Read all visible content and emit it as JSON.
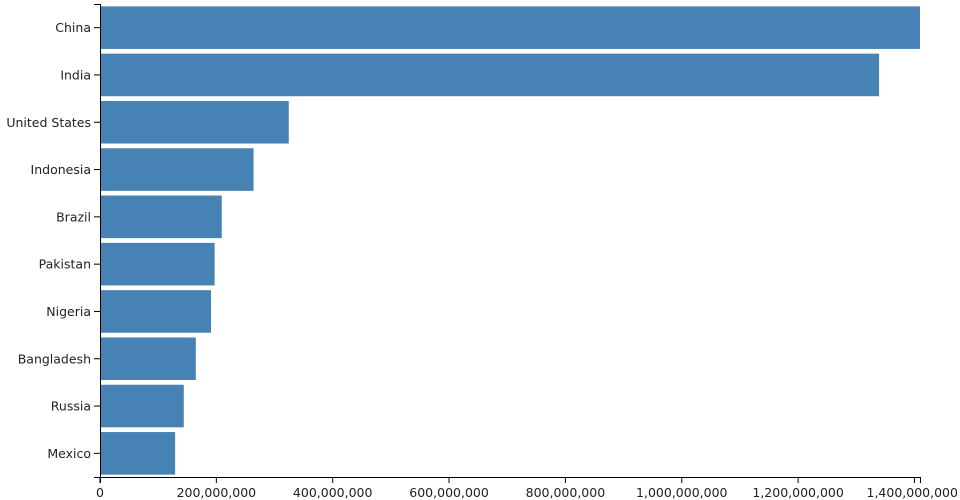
{
  "chart_data": {
    "type": "bar",
    "orientation": "horizontal",
    "title": "",
    "xlabel": "",
    "ylabel": "",
    "categories": [
      "China",
      "India",
      "United States",
      "Indonesia",
      "Brazil",
      "Pakistan",
      "Nigeria",
      "Bangladesh",
      "Russia",
      "Mexico"
    ],
    "values": [
      1409517397,
      1339180127,
      324459463,
      263991379,
      209288278,
      197015955,
      190886311,
      164669751,
      143989754,
      129163276
    ],
    "xlim": [
      0,
      1409517397
    ],
    "x_ticks": [
      0,
      200000000,
      400000000,
      600000000,
      800000000,
      1000000000,
      1200000000,
      1400000000
    ],
    "x_tick_labels": [
      "0",
      "200,000,000",
      "400,000,000",
      "600,000,000",
      "800,000,000",
      "1,000,000,000",
      "1,200,000,000",
      "1,400,000,000"
    ],
    "grid": false,
    "bar_color": "#4682b4",
    "axis_color": "#000000"
  }
}
